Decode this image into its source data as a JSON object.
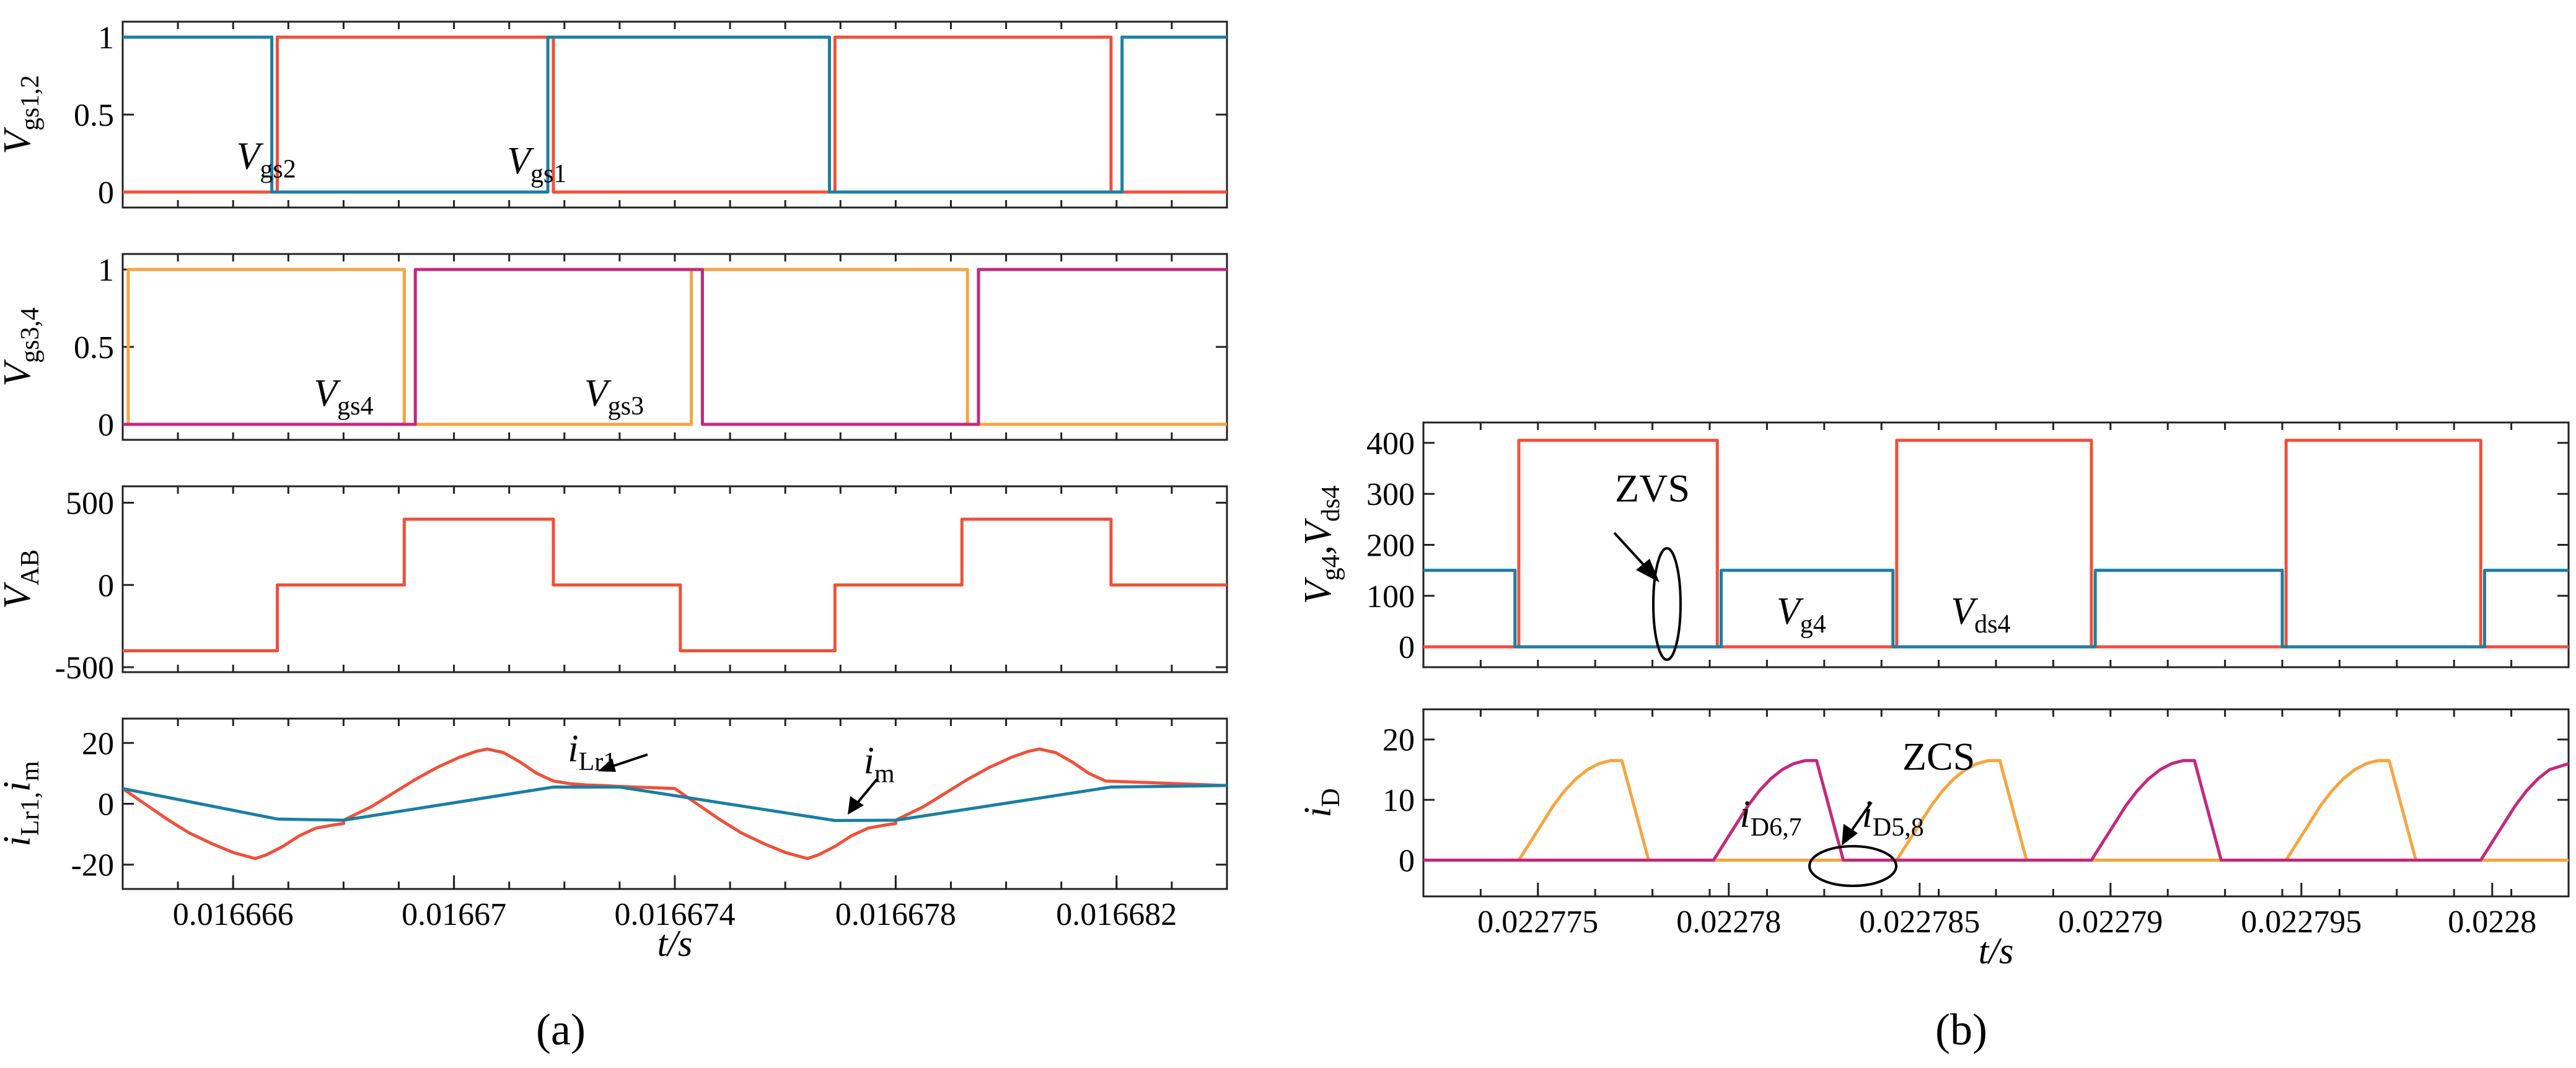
{
  "colors": {
    "red": "#f0503a",
    "blue": "#1a7fa3",
    "orange": "#f6a540",
    "magenta": "#c3297d"
  },
  "panel_labels": {
    "a": "(a)",
    "b": "(b)"
  },
  "chart_data": [
    {
      "id": "a1",
      "type": "line",
      "ylabel": "V",
      "ylabel_sub": "gs1,2",
      "xlim": [
        0.016664,
        0.016684
      ],
      "ylim": [
        -0.1,
        1.1
      ],
      "yticks": [
        0,
        0.5,
        1
      ],
      "ytick_labels": [
        "0",
        "0.5",
        "1"
      ],
      "series": [
        {
          "name": "Vgs1",
          "color": "#f0503a",
          "x": [
            0.016664,
            0.0166668,
            0.0166668,
            0.0166718,
            0.0166718,
            0.0166769,
            0.0166769,
            0.0166819,
            0.0166819,
            0.016684
          ],
          "y": [
            0,
            0,
            1,
            1,
            0,
            0,
            1,
            1,
            0,
            0
          ]
        },
        {
          "name": "Vgs2",
          "color": "#1a7fa3",
          "x": [
            0.016664,
            0.0166667,
            0.0166667,
            0.0166717,
            0.0166717,
            0.0166768,
            0.0166768,
            0.0166821,
            0.0166821,
            0.016684
          ],
          "y": [
            1,
            1,
            0,
            0,
            1,
            1,
            0,
            0,
            1,
            1
          ]
        }
      ],
      "annotations": [
        {
          "name": "vgs1-label",
          "main": "V",
          "sub": "gs1",
          "x": 0.0166715,
          "y": 0.12
        },
        {
          "name": "vgs2-label",
          "main": "V",
          "sub": "gs2",
          "x": 0.0166666,
          "y": 0.15
        }
      ]
    },
    {
      "id": "a2",
      "type": "line",
      "ylabel": "V",
      "ylabel_sub": "gs3,4",
      "xlim": [
        0.016664,
        0.016684
      ],
      "ylim": [
        -0.1,
        1.1
      ],
      "yticks": [
        0,
        0.5,
        1
      ],
      "ytick_labels": [
        "0",
        "0.5",
        "1"
      ],
      "series": [
        {
          "name": "Vgs3",
          "color": "#f6a540",
          "x": [
            0.016664,
            0.0166641,
            0.0166641,
            0.0166691,
            0.0166691,
            0.0166743,
            0.0166743,
            0.0166793,
            0.0166793,
            0.016684
          ],
          "y": [
            0,
            0,
            1,
            1,
            0,
            0,
            1,
            1,
            0,
            0
          ]
        },
        {
          "name": "Vgs4",
          "color": "#c3297d",
          "x": [
            0.016664,
            0.0166693,
            0.0166693,
            0.0166745,
            0.0166745,
            0.0166795,
            0.0166795,
            0.016684
          ],
          "y": [
            0,
            0,
            1,
            1,
            0,
            0,
            1,
            1
          ]
        }
      ],
      "annotations": [
        {
          "name": "vgs4-label",
          "main": "V",
          "sub": "gs4",
          "x": 0.016668,
          "y": 0.12
        },
        {
          "name": "vgs3-label",
          "main": "V",
          "sub": "gs3",
          "x": 0.0166729,
          "y": 0.12
        }
      ]
    },
    {
      "id": "a3",
      "type": "line",
      "ylabel": "V",
      "ylabel_sub": "AB",
      "xlim": [
        0.016664,
        0.016684
      ],
      "ylim": [
        -530,
        600
      ],
      "yticks": [
        -500,
        0,
        500
      ],
      "ytick_labels": [
        "-500",
        "0",
        "500"
      ],
      "series": [
        {
          "name": "VAB",
          "color": "#f0503a",
          "x": [
            0.016664,
            0.0166668,
            0.0166668,
            0.0166691,
            0.0166691,
            0.0166718,
            0.0166718,
            0.0166741,
            0.0166741,
            0.0166769,
            0.0166769,
            0.0166792,
            0.0166792,
            0.0166819,
            0.0166819,
            0.016684
          ],
          "y": [
            -400,
            -400,
            0,
            0,
            400,
            400,
            0,
            0,
            -400,
            -400,
            0,
            0,
            400,
            400,
            0,
            0
          ]
        }
      ],
      "annotations": []
    },
    {
      "id": "a4",
      "type": "line",
      "ylabel": "i",
      "ylabel_sub": "Lr1,",
      "ylabel_main2": "i",
      "ylabel_sub2": "m",
      "xlim": [
        0.016664,
        0.016684
      ],
      "ylim": [
        -28,
        28
      ],
      "yticks": [
        -20,
        0,
        20
      ],
      "ytick_labels": [
        "-20",
        "0",
        "20"
      ],
      "xticks": [
        0.016666,
        0.01667,
        0.016674,
        0.016678,
        0.016682
      ],
      "xtick_labels": [
        "0.016666",
        "0.01667",
        "0.016674",
        "0.016678",
        "0.016682"
      ],
      "xlabel": "t/s",
      "series": [
        {
          "name": "iLr1",
          "color": "#f0503a",
          "x": [
            0.016664,
            0.0166644,
            0.0166648,
            0.0166652,
            0.0166656,
            0.016666,
            0.0166664,
            0.0166666,
            0.0166669,
            0.0166672,
            0.0166675,
            0.0166678,
            0.016668,
            0.016668,
            0.0166685,
            0.0166689,
            0.0166693,
            0.0166697,
            0.0166701,
            0.0166704,
            0.0166706,
            0.0166709,
            0.0166712,
            0.0166715,
            0.0166718,
            0.0166721,
            0.0166724,
            0.0166727,
            0.016673,
            0.016674,
            0.0166744,
            0.0166748,
            0.0166752,
            0.0166756,
            0.016676,
            0.0166764,
            0.0166766,
            0.0166769,
            0.0166772,
            0.0166775,
            0.0166778,
            0.016678,
            0.016678,
            0.0166785,
            0.0166789,
            0.0166793,
            0.0166797,
            0.0166801,
            0.0166804,
            0.0166806,
            0.0166809,
            0.0166812,
            0.0166815,
            0.0166818,
            0.016684
          ],
          "y": [
            5,
            0,
            -5,
            -9.5,
            -13,
            -16,
            -18,
            -16.8,
            -14,
            -10.5,
            -8,
            -7,
            -6.5,
            -5.4,
            -1,
            3.5,
            8,
            12,
            15.3,
            17.2,
            18,
            16.8,
            13.7,
            10,
            7.5,
            6.6,
            6.2,
            6,
            5.7,
            5,
            0,
            -5,
            -9.5,
            -13,
            -16,
            -18,
            -16.8,
            -14,
            -10.5,
            -8,
            -7,
            -6.5,
            -5.4,
            -1,
            3.5,
            8,
            12,
            15.3,
            17.2,
            18,
            16.8,
            13.7,
            10,
            7.5,
            6
          ]
        },
        {
          "name": "im",
          "color": "#1a7fa3",
          "x": [
            0.016664,
            0.0166668,
            0.016668,
            0.0166718,
            0.016673,
            0.0166769,
            0.016678,
            0.0166819,
            0.016684
          ],
          "y": [
            5,
            -5,
            -5.4,
            5.5,
            5.5,
            -5.5,
            -5.4,
            5.5,
            6
          ]
        }
      ],
      "annotations": [
        {
          "name": "ilr1-label",
          "main": "i",
          "sub": "Lr1",
          "x": 0.0166725,
          "y": 14
        },
        {
          "name": "im-label",
          "main": "i",
          "sub": "m",
          "x": 0.0166777,
          "y": 10
        }
      ]
    },
    {
      "id": "b1",
      "type": "line",
      "ylabel": "V",
      "ylabel_sub": "g4",
      "ylabel_main2": ",V",
      "ylabel_sub2": "ds4",
      "xlim": [
        0.022772,
        0.022802
      ],
      "ylim": [
        -40,
        440
      ],
      "yticks": [
        0,
        100,
        200,
        300,
        400
      ],
      "ytick_labels": [
        "0",
        "100",
        "200",
        "300",
        "400"
      ],
      "series": [
        {
          "name": "Vds4",
          "color": "#f0503a",
          "x": [
            0.022772,
            0.0227745,
            0.0227745,
            0.0227797,
            0.0227797,
            0.0227844,
            0.0227844,
            0.0227895,
            0.0227895,
            0.0227946,
            0.0227946,
            0.0227997,
            0.0227997,
            0.022802
          ],
          "y": [
            0,
            0,
            405,
            405,
            0,
            0,
            405,
            405,
            0,
            0,
            405,
            405,
            0,
            0
          ]
        },
        {
          "name": "Vg4",
          "color": "#1a7fa3",
          "x": [
            0.022772,
            0.0227744,
            0.0227744,
            0.0227798,
            0.0227798,
            0.0227843,
            0.0227843,
            0.0227896,
            0.0227896,
            0.0227945,
            0.0227945,
            0.0227998,
            0.0227998,
            0.022802
          ],
          "y": [
            150,
            150,
            0,
            0,
            150,
            150,
            0,
            0,
            150,
            150,
            0,
            0,
            150,
            150
          ]
        }
      ],
      "annotations": [
        {
          "name": "zvs-label",
          "text": "ZVS",
          "x": 0.022778,
          "y": 285
        },
        {
          "name": "vg4-label",
          "main": "V",
          "sub": "g4",
          "x": 0.0227819,
          "y": 45
        },
        {
          "name": "vds4-label",
          "main": "V",
          "sub": "ds4",
          "x": 0.0227866,
          "y": 45
        }
      ]
    },
    {
      "id": "b2",
      "type": "line",
      "ylabel": "i",
      "ylabel_sub": "D",
      "xlim": [
        0.022772,
        0.022802
      ],
      "ylim": [
        -6,
        25
      ],
      "yticks": [
        0,
        10,
        20
      ],
      "ytick_labels": [
        "0",
        "10",
        "20"
      ],
      "xticks": [
        0.022775,
        0.02278,
        0.022785,
        0.02279,
        0.022795,
        0.0228
      ],
      "xtick_labels": [
        "0.022775",
        "0.02278",
        "0.022785",
        "0.02279",
        "0.022795",
        "0.0228"
      ],
      "xlabel": "t/s",
      "series": [
        {
          "name": "iD5,8",
          "color": "#f6a540",
          "x": [
            0.022772,
            0.0227745,
            0.0227748,
            0.0227751,
            0.0227754,
            0.0227757,
            0.022776,
            0.0227763,
            0.0227766,
            0.0227769,
            0.0227772,
            0.0227779,
            0.0227844,
            0.0227847,
            0.022785,
            0.0227853,
            0.0227856,
            0.0227859,
            0.0227862,
            0.0227865,
            0.0227868,
            0.0227871,
            0.0227878,
            0.0227946,
            0.0227949,
            0.0227952,
            0.0227955,
            0.0227958,
            0.0227961,
            0.0227964,
            0.0227967,
            0.022797,
            0.0227973,
            0.022798,
            0.022802
          ],
          "y": [
            0,
            0,
            3,
            6,
            9,
            11.5,
            13.5,
            15,
            16,
            16.5,
            16.5,
            0,
            0,
            3,
            6,
            9,
            11.5,
            13.5,
            15,
            16,
            16.5,
            16.5,
            0,
            0,
            3,
            6,
            9,
            11.5,
            13.5,
            15,
            16,
            16.5,
            16.5,
            0,
            0
          ]
        },
        {
          "name": "iD6,7",
          "color": "#c3297d",
          "x": [
            0.022772,
            0.0227796,
            0.0227799,
            0.0227802,
            0.0227805,
            0.0227808,
            0.0227811,
            0.0227814,
            0.0227817,
            0.022782,
            0.0227823,
            0.022783,
            0.0227895,
            0.0227898,
            0.0227901,
            0.0227904,
            0.0227907,
            0.022791,
            0.0227913,
            0.0227916,
            0.0227919,
            0.0227922,
            0.0227929,
            0.0227997,
            0.0228,
            0.0228003,
            0.0228006,
            0.0228009,
            0.0228012,
            0.0228015,
            0.022802
          ],
          "y": [
            0,
            0,
            3,
            6,
            9,
            11.5,
            13.5,
            15,
            16,
            16.5,
            16.5,
            0,
            0,
            3,
            6,
            9,
            11.5,
            13.5,
            15,
            16,
            16.5,
            16.5,
            0,
            0,
            3,
            6,
            9,
            11.5,
            13.5,
            15,
            16
          ]
        }
      ],
      "annotations": [
        {
          "name": "zcs-label",
          "text": "ZCS",
          "x": 0.0227855,
          "y": 15
        },
        {
          "name": "id67-label",
          "main": "i",
          "sub": "D6,7",
          "x": 0.0227811,
          "y": 5.5
        },
        {
          "name": "id58-label",
          "main": "i",
          "sub": "D5,8",
          "x": 0.0227843,
          "y": 5.5
        }
      ]
    }
  ]
}
